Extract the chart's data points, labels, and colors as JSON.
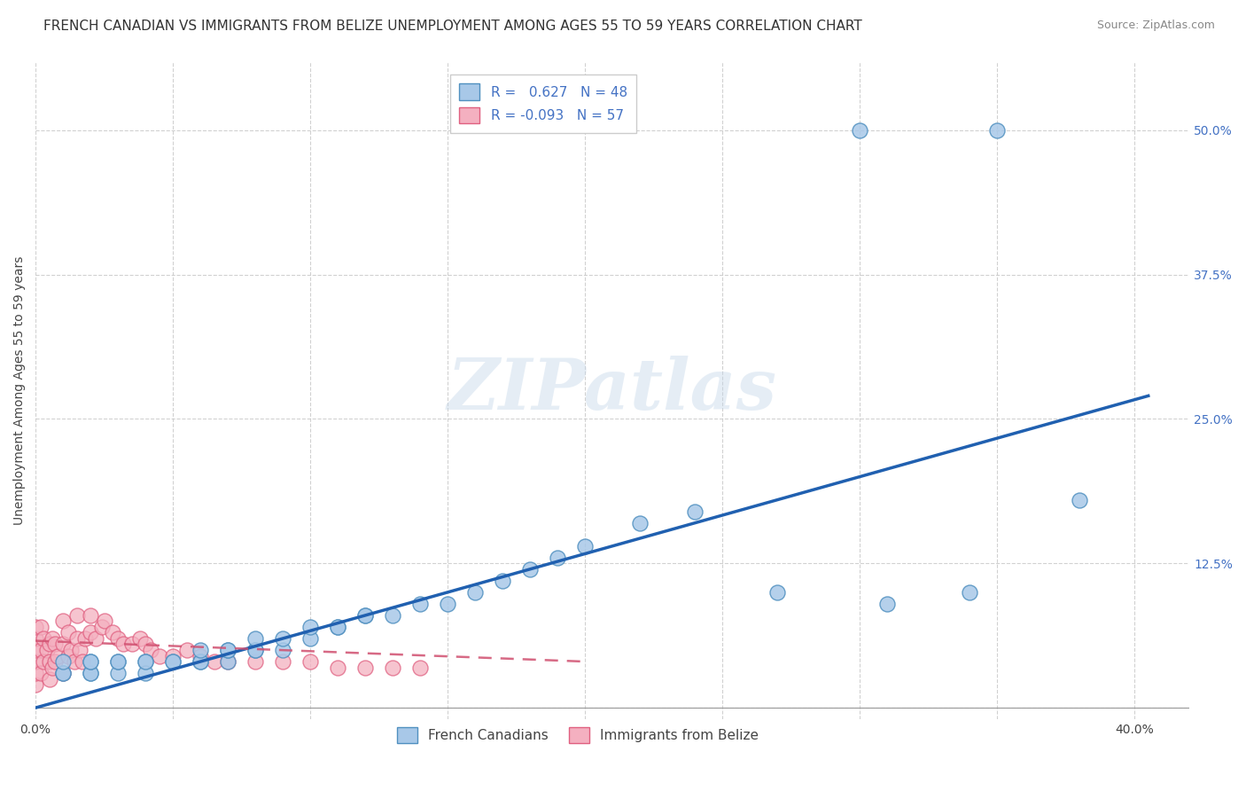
{
  "title": "FRENCH CANADIAN VS IMMIGRANTS FROM BELIZE UNEMPLOYMENT AMONG AGES 55 TO 59 YEARS CORRELATION CHART",
  "source": "Source: ZipAtlas.com",
  "ylabel": "Unemployment Among Ages 55 to 59 years",
  "xlim": [
    0.0,
    0.42
  ],
  "ylim": [
    -0.01,
    0.56
  ],
  "x_ticks": [
    0.0,
    0.05,
    0.1,
    0.15,
    0.2,
    0.25,
    0.3,
    0.35,
    0.4
  ],
  "y_ticks_right": [
    0.0,
    0.125,
    0.25,
    0.375,
    0.5
  ],
  "y_tick_labels_right": [
    "",
    "12.5%",
    "25.0%",
    "37.5%",
    "50.0%"
  ],
  "blue_R": 0.627,
  "blue_N": 48,
  "pink_R": -0.093,
  "pink_N": 57,
  "blue_color": "#a8c8e8",
  "pink_color": "#f4b0c0",
  "blue_edge_color": "#5090c0",
  "pink_edge_color": "#e06080",
  "blue_line_color": "#2060b0",
  "pink_line_color": "#d05070",
  "legend_label_blue": "French Canadians",
  "legend_label_pink": "Immigrants from Belize",
  "watermark": "ZIPatlas",
  "blue_scatter_x": [
    0.3,
    0.35,
    0.01,
    0.01,
    0.01,
    0.02,
    0.02,
    0.02,
    0.02,
    0.03,
    0.03,
    0.03,
    0.04,
    0.04,
    0.04,
    0.05,
    0.05,
    0.06,
    0.06,
    0.06,
    0.07,
    0.07,
    0.07,
    0.08,
    0.08,
    0.08,
    0.09,
    0.09,
    0.1,
    0.1,
    0.11,
    0.11,
    0.12,
    0.12,
    0.13,
    0.14,
    0.15,
    0.16,
    0.17,
    0.18,
    0.19,
    0.2,
    0.22,
    0.24,
    0.27,
    0.31,
    0.34,
    0.38
  ],
  "blue_scatter_y": [
    0.5,
    0.5,
    0.03,
    0.03,
    0.04,
    0.03,
    0.03,
    0.04,
    0.04,
    0.03,
    0.04,
    0.04,
    0.04,
    0.03,
    0.04,
    0.04,
    0.04,
    0.04,
    0.04,
    0.05,
    0.04,
    0.05,
    0.05,
    0.05,
    0.05,
    0.06,
    0.05,
    0.06,
    0.06,
    0.07,
    0.07,
    0.07,
    0.08,
    0.08,
    0.08,
    0.09,
    0.09,
    0.1,
    0.11,
    0.12,
    0.13,
    0.14,
    0.16,
    0.17,
    0.1,
    0.09,
    0.1,
    0.18
  ],
  "pink_scatter_x": [
    0.0,
    0.0,
    0.0,
    0.0,
    0.0,
    0.0,
    0.002,
    0.002,
    0.002,
    0.003,
    0.003,
    0.004,
    0.005,
    0.005,
    0.005,
    0.006,
    0.006,
    0.007,
    0.007,
    0.008,
    0.01,
    0.01,
    0.01,
    0.012,
    0.012,
    0.013,
    0.014,
    0.015,
    0.015,
    0.016,
    0.017,
    0.018,
    0.02,
    0.02,
    0.022,
    0.024,
    0.025,
    0.028,
    0.03,
    0.032,
    0.035,
    0.038,
    0.04,
    0.042,
    0.045,
    0.05,
    0.055,
    0.06,
    0.065,
    0.07,
    0.08,
    0.09,
    0.1,
    0.11,
    0.12,
    0.13,
    0.14
  ],
  "pink_scatter_y": [
    0.02,
    0.03,
    0.04,
    0.05,
    0.06,
    0.07,
    0.03,
    0.05,
    0.07,
    0.04,
    0.06,
    0.05,
    0.025,
    0.04,
    0.055,
    0.035,
    0.06,
    0.04,
    0.055,
    0.045,
    0.03,
    0.055,
    0.075,
    0.045,
    0.065,
    0.05,
    0.04,
    0.06,
    0.08,
    0.05,
    0.04,
    0.06,
    0.065,
    0.08,
    0.06,
    0.07,
    0.075,
    0.065,
    0.06,
    0.055,
    0.055,
    0.06,
    0.055,
    0.05,
    0.045,
    0.045,
    0.05,
    0.045,
    0.04,
    0.04,
    0.04,
    0.04,
    0.04,
    0.035,
    0.035,
    0.035,
    0.035
  ],
  "blue_line_x0": 0.0,
  "blue_line_y0": 0.0,
  "blue_line_x1": 0.405,
  "blue_line_y1": 0.27,
  "pink_line_x0": 0.0,
  "pink_line_y0": 0.058,
  "pink_line_x1": 0.2,
  "pink_line_y1": 0.04,
  "grid_color": "#cccccc",
  "background_color": "#ffffff",
  "title_fontsize": 11,
  "source_fontsize": 9,
  "axis_label_fontsize": 10,
  "tick_fontsize": 10,
  "legend_fontsize": 11
}
